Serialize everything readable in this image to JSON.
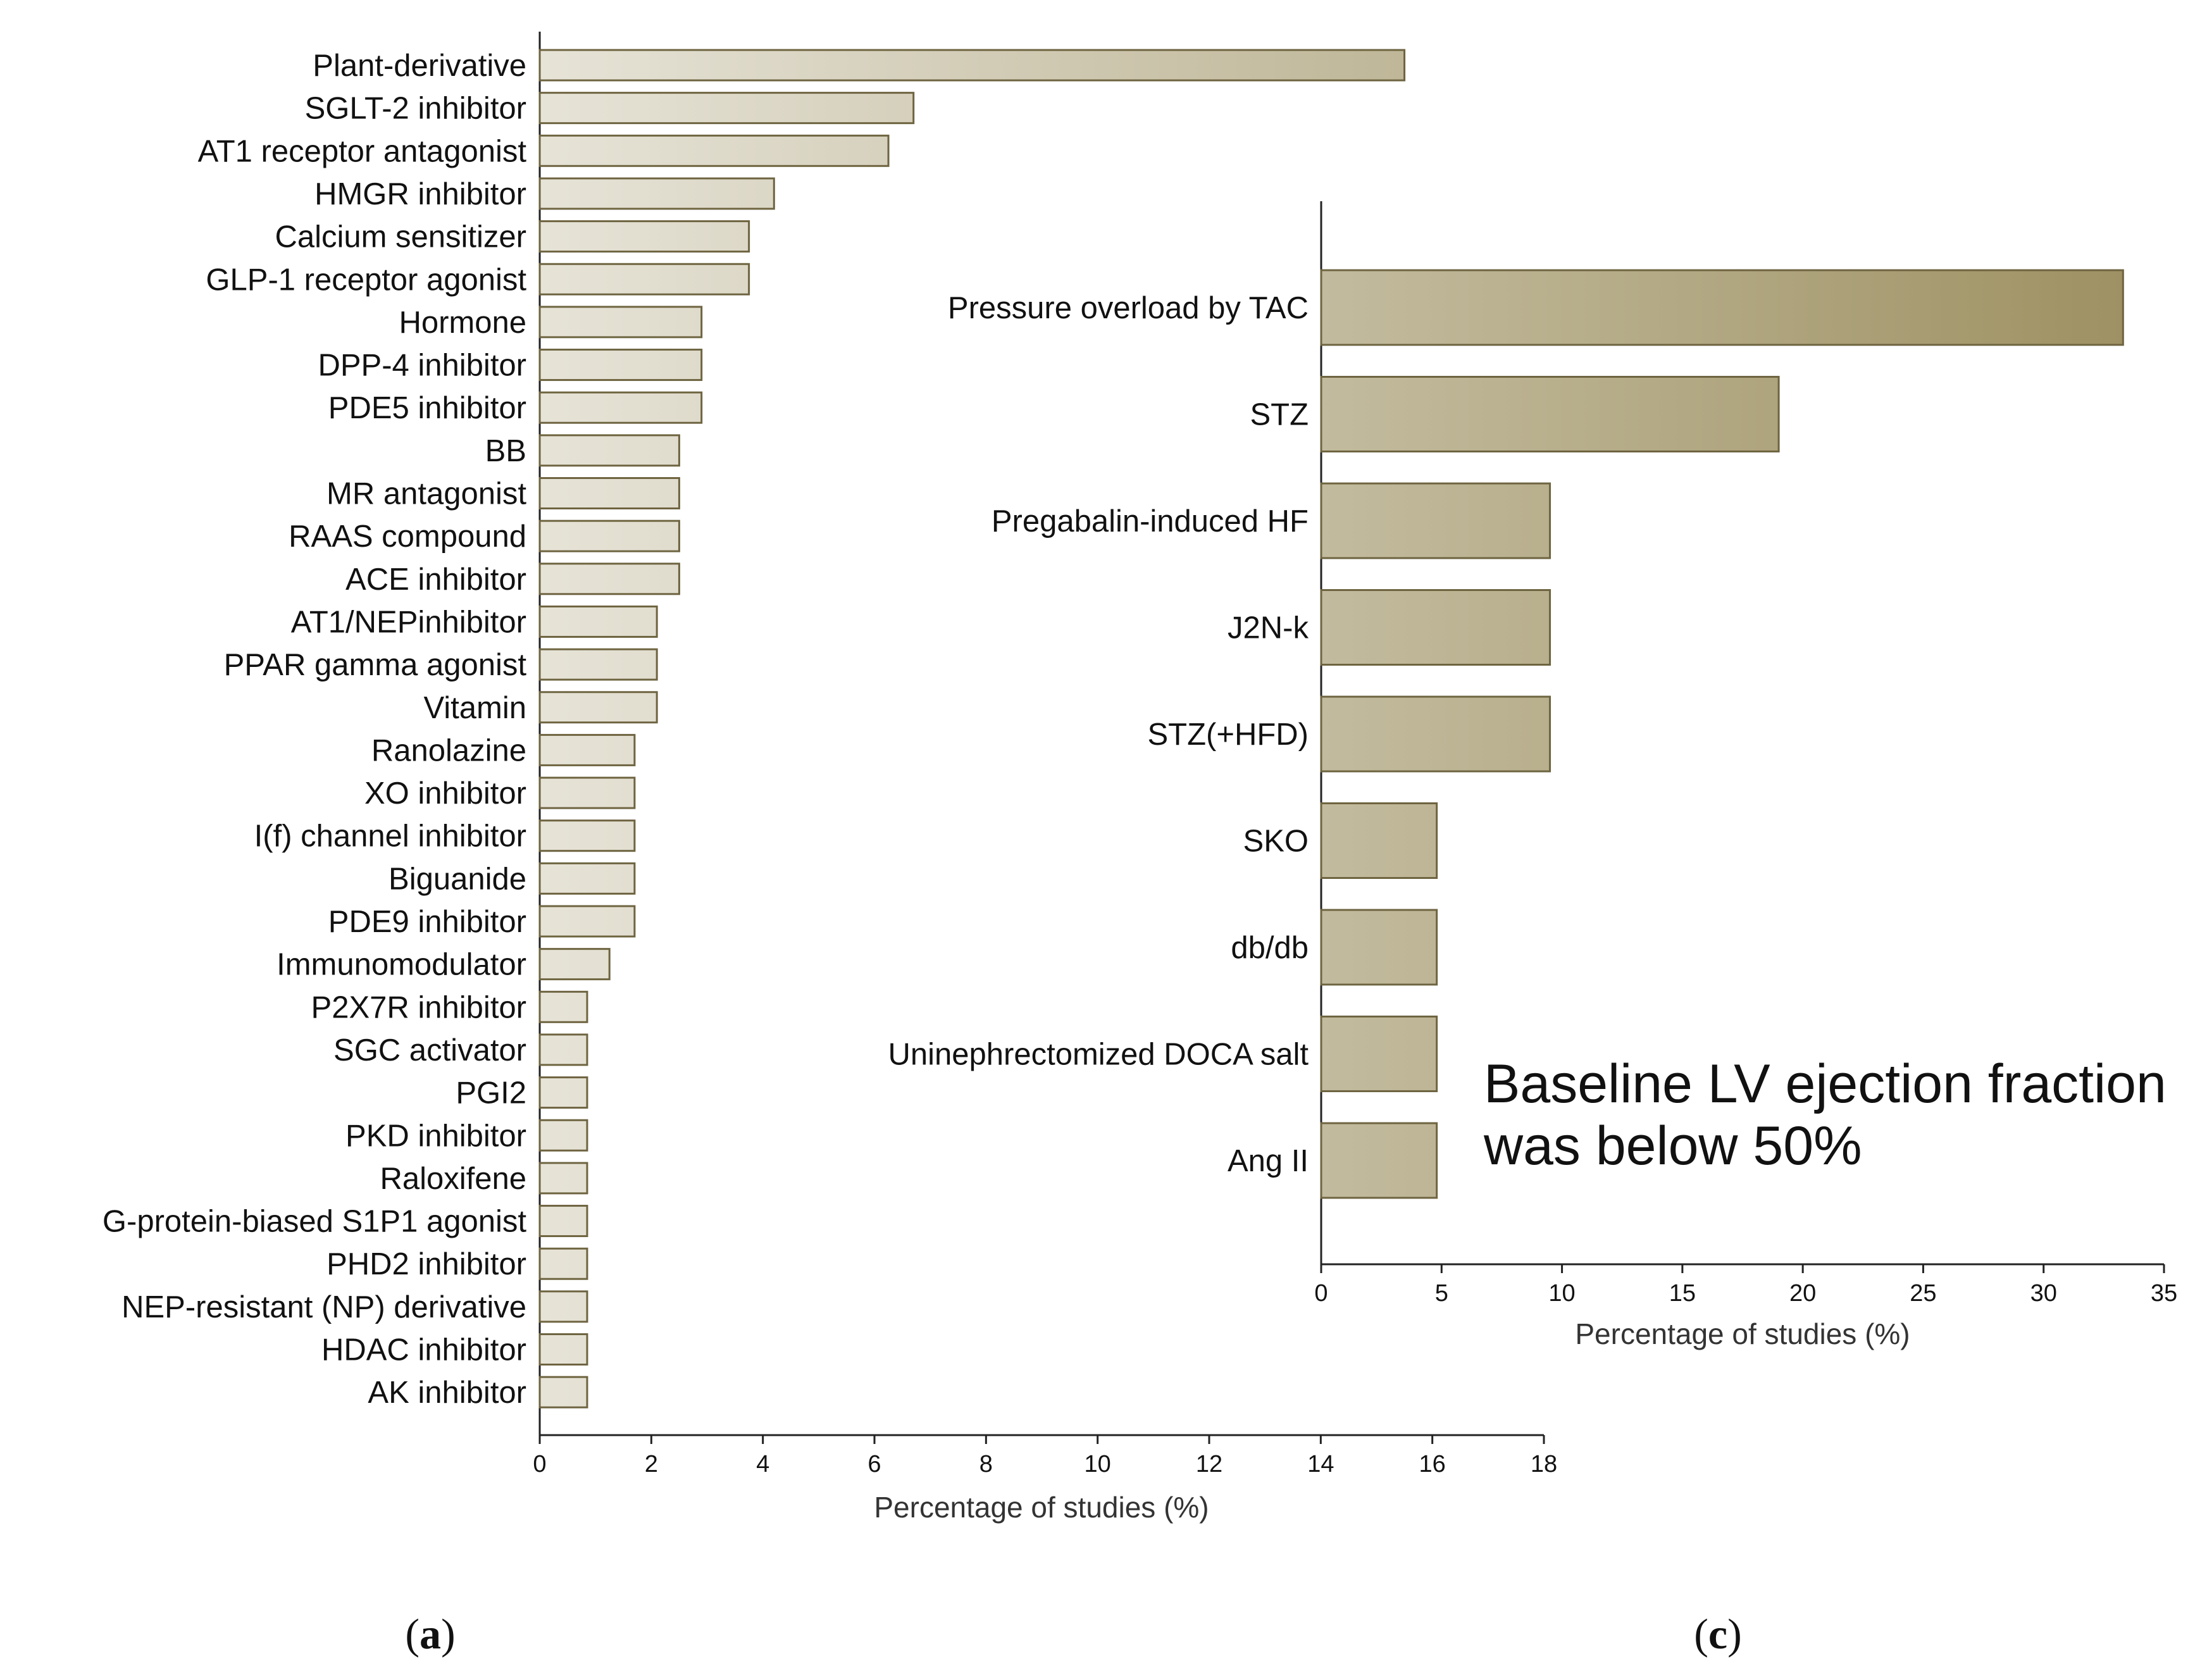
{
  "chart_data": [
    {
      "panel": "a",
      "type": "bar",
      "orientation": "horizontal",
      "categories": [
        "Plant-derivative",
        "SGLT-2 inhibitor",
        "AT1 receptor antagonist",
        "HMGR inhibitor",
        "Calcium sensitizer",
        "GLP-1 receptor agonist",
        "Hormone",
        "DPP-4 inhibitor",
        "PDE5 inhibitor",
        "BB",
        "MR antagonist",
        "RAAS compound",
        "ACE inhibitor",
        "AT1/NEPinhibitor",
        "PPAR gamma agonist",
        "Vitamin",
        "Ranolazine",
        "XO inhibitor",
        "I(f) channel inhibitor",
        "Biguanide",
        "PDE9 inhibitor",
        "Immunomodulator",
        "P2X7R inhibitor",
        "SGC activator",
        "PGI2",
        "PKD inhibitor",
        "Raloxifene",
        "G-protein-biased S1P1 agonist",
        "PHD2 inhibitor",
        "NEP-resistant (NP) derivative",
        "HDAC inhibitor",
        "AK inhibitor"
      ],
      "values": [
        15.5,
        6.7,
        6.25,
        4.2,
        3.75,
        3.75,
        2.9,
        2.9,
        2.9,
        2.5,
        2.5,
        2.5,
        2.5,
        2.1,
        2.1,
        2.1,
        1.7,
        1.7,
        1.7,
        1.7,
        1.7,
        1.25,
        0.85,
        0.85,
        0.85,
        0.85,
        0.85,
        0.85,
        0.85,
        0.85,
        0.85,
        0.85
      ],
      "xlim": [
        0,
        18
      ],
      "xticks": [
        0,
        2,
        4,
        6,
        8,
        10,
        12,
        14,
        16,
        18
      ],
      "xlabel": "Percentage of studies (%)",
      "ylabel": "",
      "colors": {
        "bar_start": "#ffffff",
        "bar_end": "#9b8e5e",
        "bar_stroke": "#6e6440"
      },
      "panel_label_prefix": "(",
      "panel_label_letter": "a",
      "panel_label_suffix": ")"
    },
    {
      "panel": "c",
      "type": "bar",
      "orientation": "horizontal",
      "categories": [
        "Pressure overload by TAC",
        "STZ",
        "Pregabalin-induced HF",
        "J2N-k",
        "STZ(+HFD)",
        "SKO",
        "db/db",
        "Uninephrectomized DOCA salt",
        "Ang II"
      ],
      "values": [
        33.3,
        19.0,
        9.5,
        9.5,
        9.5,
        4.8,
        4.8,
        4.8,
        4.8
      ],
      "xlim": [
        0,
        35
      ],
      "xticks": [
        0,
        5,
        10,
        15,
        20,
        25,
        30,
        35
      ],
      "xlabel": "Percentage of studies (%)",
      "ylabel": "",
      "annotation_line1": "Baseline LV ejection fraction",
      "annotation_line2": "was below 50%",
      "colors": {
        "bar_start": "#ffffff",
        "bar_end": "#9b8e5e",
        "bar_stroke": "#6e6440"
      },
      "panel_label_prefix": "(",
      "panel_label_letter": "c",
      "panel_label_suffix": ")"
    }
  ]
}
